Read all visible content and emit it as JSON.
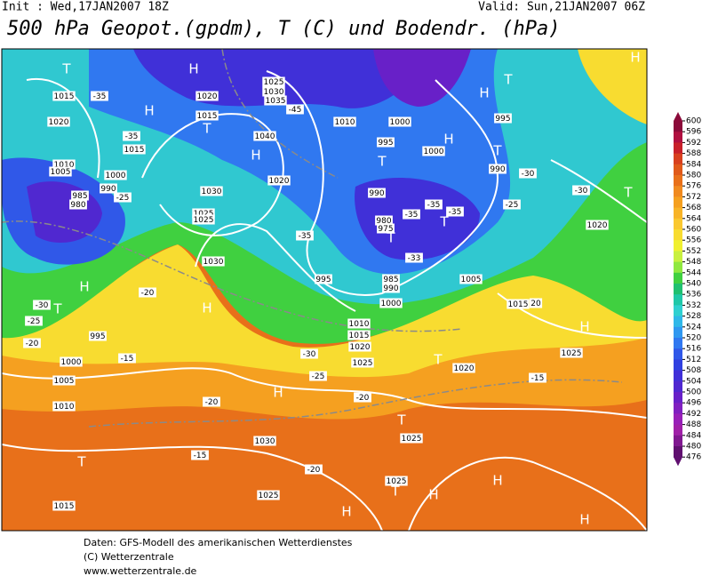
{
  "header": {
    "init": "Init : Wed,17JAN2007 18Z",
    "valid": "Valid: Sun,21JAN2007 06Z",
    "title": "500 hPa Geopot.(gpdm), T (C) und Bodendr. (hPa)"
  },
  "colorbar": {
    "ticks": [
      600,
      596,
      592,
      588,
      584,
      580,
      576,
      572,
      568,
      564,
      560,
      556,
      552,
      548,
      544,
      540,
      536,
      532,
      528,
      524,
      520,
      516,
      512,
      508,
      504,
      500,
      496,
      492,
      488,
      484,
      480,
      476
    ],
    "colors": [
      "#8b0a3a",
      "#b01040",
      "#c8202a",
      "#d8401e",
      "#e05a1a",
      "#e8701a",
      "#f08a20",
      "#f5a020",
      "#f8b428",
      "#fac830",
      "#f8dc30",
      "#f0f030",
      "#c8f040",
      "#90e840",
      "#40d040",
      "#20c070",
      "#20c8a8",
      "#30d0d0",
      "#30b8e8",
      "#3098f0",
      "#3078f0",
      "#3058e8",
      "#3040e0",
      "#4030d8",
      "#5028d0",
      "#6820c8",
      "#8020c0",
      "#9820b8",
      "#a020a8",
      "#801890",
      "#601070"
    ]
  },
  "map": {
    "labels": [
      "T",
      "H",
      "H",
      "T",
      "H",
      "1015",
      "-35",
      "H",
      "1020",
      "1025",
      "1030",
      "1035",
      "-45",
      "1015",
      "T",
      "1040",
      "H",
      "1010",
      "1000",
      "995",
      "T",
      "H",
      "1000",
      "995",
      "T",
      "990",
      "-30",
      "1020",
      "-35",
      "1015",
      "1010",
      "1005",
      "1000",
      "990",
      "985",
      "980",
      "-25",
      "1030",
      "1025",
      "1025",
      "1020",
      "-35",
      "990",
      "980",
      "975",
      "T",
      "-35",
      "-35",
      "-35",
      "T",
      "-33",
      "-25",
      "-30",
      "T",
      "1020",
      "1030",
      "-20",
      "1005",
      "985",
      "990",
      "1000",
      "995",
      "H",
      "T",
      "-30",
      "-25",
      "H",
      "1015",
      "20",
      "1010",
      "1015",
      "1020",
      "-30",
      "1025",
      "995",
      "1000",
      "-20",
      "-15",
      "H",
      "1025",
      "T",
      "1020",
      "-15",
      "-25",
      "1005",
      "-20",
      "H",
      "1010",
      "-20",
      "T",
      "1030",
      "1025",
      "-15",
      "T",
      "-20",
      "1025",
      "T",
      "H",
      "H",
      "1025",
      "1015",
      "H",
      "H"
    ]
  },
  "footer": {
    "lines": [
      "Daten: GFS-Modell des amerikanischen Wetterdienstes",
      "(C) Wetterzentrale",
      "www.wetterzentrale.de"
    ]
  }
}
